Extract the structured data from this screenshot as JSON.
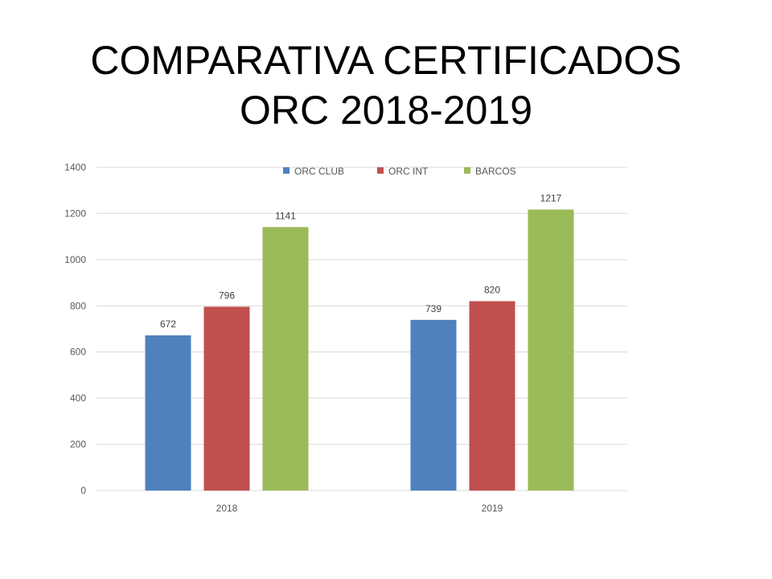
{
  "title_line1": "COMPARATIVA CERTIFICADOS",
  "title_line2": "ORC 2018-2019",
  "chart_data": {
    "type": "bar",
    "title": "COMPARATIVA CERTIFICADOS ORC 2018-2019",
    "categories": [
      "2018",
      "2019"
    ],
    "series": [
      {
        "name": "ORC CLUB",
        "values": [
          672,
          739
        ],
        "color": "#4F81BD"
      },
      {
        "name": "ORC INT",
        "values": [
          796,
          820
        ],
        "color": "#C0504D"
      },
      {
        "name": "BARCOS",
        "values": [
          1141,
          1217
        ],
        "color": "#9BBB59"
      }
    ],
    "ylim": [
      0,
      1400
    ],
    "yticks": [
      0,
      200,
      400,
      600,
      800,
      1000,
      1200,
      1400
    ],
    "grid": true,
    "legend": "top-center",
    "xlabel": "",
    "ylabel": ""
  }
}
